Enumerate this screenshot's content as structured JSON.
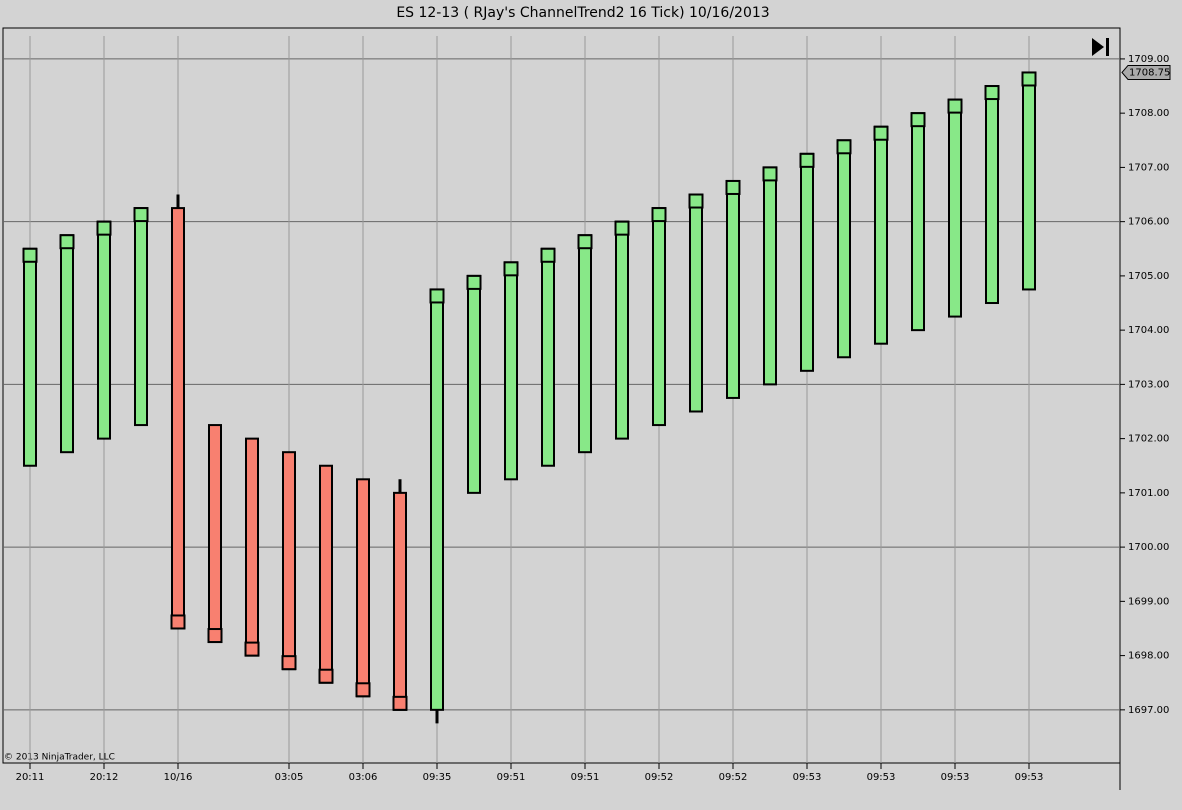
{
  "chart_data": {
    "type": "candlestick",
    "title": "ES 12-13 ( RJay's ChannelTrend2  16 Tick)  10/16/2013",
    "categories": [
      "20:11",
      null,
      "20:12",
      null,
      "10/16",
      null,
      null,
      "03:05",
      null,
      "03:06",
      null,
      "09:35",
      null,
      "09:51",
      null,
      "09:51",
      null,
      "09:52",
      null,
      "09:52",
      null,
      "09:53",
      null,
      "09:53",
      null,
      "09:53",
      null,
      "09:53"
    ],
    "open": [
      1701.5,
      1701.75,
      1702,
      1702.25,
      1706.25,
      1702.25,
      1702,
      1701.75,
      1701.5,
      1701.25,
      1701,
      1697,
      1701,
      1701.25,
      1701.5,
      1701.75,
      1702,
      1702.25,
      1702.5,
      1702.75,
      1703,
      1703.25,
      1703.5,
      1703.75,
      1704,
      1704.25,
      1704.5,
      1704.75
    ],
    "high": [
      1705.5,
      1705.75,
      1706,
      1706.25,
      1706.5,
      1702.25,
      1702,
      1701.75,
      1701.5,
      1701.25,
      1701.25,
      1704.75,
      1705,
      1705.25,
      1705.5,
      1705.75,
      1706,
      1706.25,
      1706.5,
      1706.75,
      1707,
      1707.25,
      1707.5,
      1707.75,
      1708,
      1708.25,
      1708.5,
      1708.75
    ],
    "low": [
      1701.5,
      1701.75,
      1702,
      1702.25,
      1698.5,
      1698.25,
      1698,
      1697.75,
      1697.5,
      1697.25,
      1697,
      1696.75,
      1701,
      1701.25,
      1701.5,
      1701.75,
      1702,
      1702.25,
      1702.5,
      1702.75,
      1703,
      1703.25,
      1703.5,
      1703.75,
      1704,
      1704.25,
      1704.5,
      1704.75
    ],
    "close": [
      1705.5,
      1705.75,
      1706,
      1706.25,
      1698.5,
      1698.25,
      1698,
      1697.75,
      1697.5,
      1697.25,
      1697,
      1704.75,
      1705,
      1705.25,
      1705.5,
      1705.75,
      1706,
      1706.25,
      1706.5,
      1706.75,
      1707,
      1707.25,
      1707.5,
      1707.75,
      1708,
      1708.25,
      1708.5,
      1708.75
    ],
    "up_color": "#88e888",
    "down_color": "#f88070",
    "ylim": [
      1696.02,
      1709.57
    ],
    "yticks": [
      {
        "value": 1697,
        "label": "1697.00"
      },
      {
        "value": 1698,
        "label": "1698.00"
      },
      {
        "value": 1699,
        "label": "1699.00"
      },
      {
        "value": 1700,
        "label": "1700.00"
      },
      {
        "value": 1701,
        "label": "1701.00"
      },
      {
        "value": 1702,
        "label": "1702.00"
      },
      {
        "value": 1703,
        "label": "1703.00"
      },
      {
        "value": 1704,
        "label": "1704.00"
      },
      {
        "value": 1705,
        "label": "1705.00"
      },
      {
        "value": 1706,
        "label": "1706.00"
      },
      {
        "value": 1707,
        "label": "1707.00"
      },
      {
        "value": 1708,
        "label": "1708.00"
      },
      {
        "value": 1709,
        "label": "1709.00"
      }
    ],
    "last_price": 1708.75,
    "grid": true,
    "watermark": "© 2013 NinjaTrader, LLC"
  }
}
